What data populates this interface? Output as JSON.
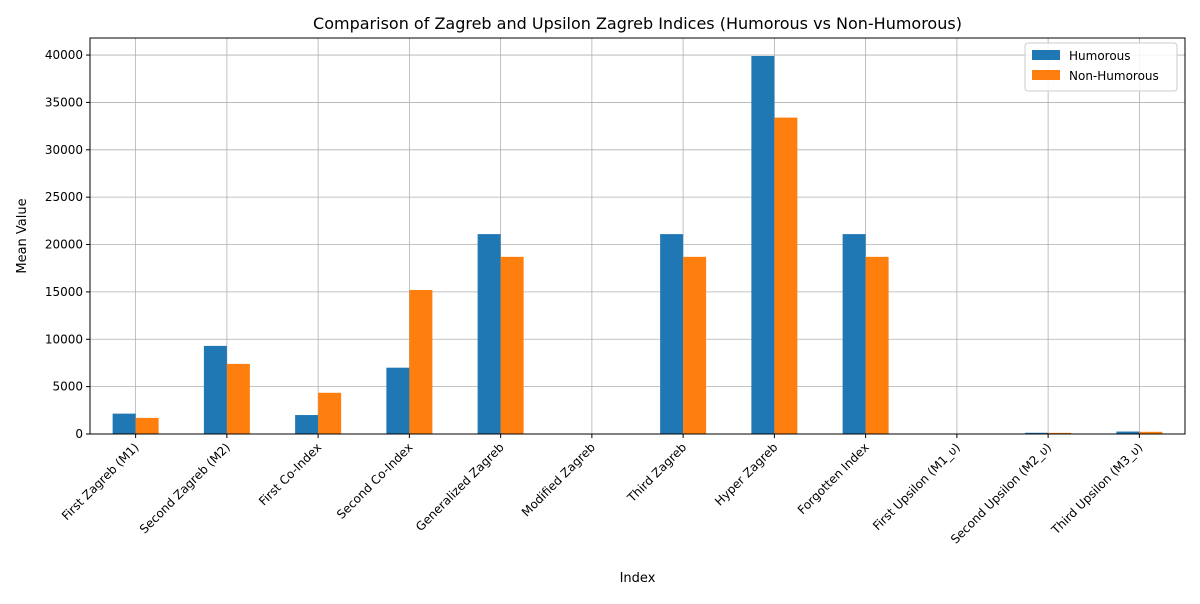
{
  "chart_data": {
    "type": "bar",
    "title": "Comparison of Zagreb and Upsilon Zagreb Indices (Humorous vs Non-Humorous)",
    "xlabel": "Index",
    "ylabel": "Mean Value",
    "ylim": [
      0,
      41800
    ],
    "yticks": [
      0,
      5000,
      10000,
      15000,
      20000,
      25000,
      30000,
      35000,
      40000
    ],
    "ytick_labels": [
      "0",
      "5000",
      "10000",
      "15000",
      "20000",
      "25000",
      "30000",
      "35000",
      "40000"
    ],
    "grid": true,
    "legend_position": "top-right",
    "categories": [
      "First Zagreb (M1)",
      "Second Zagreb (M2)",
      "First Co-Index",
      "Second Co-Index",
      "Generalized Zagreb",
      "Modified Zagreb",
      "Third Zagreb",
      "Hyper Zagreb",
      "Forgotten Index",
      "First Upsilon (M1_υ)",
      "Second Upsilon (M2_υ)",
      "Third Upsilon (M3_υ)"
    ],
    "series": [
      {
        "name": "Humorous",
        "color": "#1f77b4",
        "values": [
          2150,
          9300,
          2000,
          7000,
          21100,
          5,
          21100,
          39900,
          21100,
          10,
          130,
          260
        ]
      },
      {
        "name": "Non-Humorous",
        "color": "#ff7f0e",
        "values": [
          1700,
          7400,
          4350,
          15200,
          18700,
          5,
          18700,
          33400,
          18700,
          10,
          120,
          230
        ]
      }
    ]
  }
}
